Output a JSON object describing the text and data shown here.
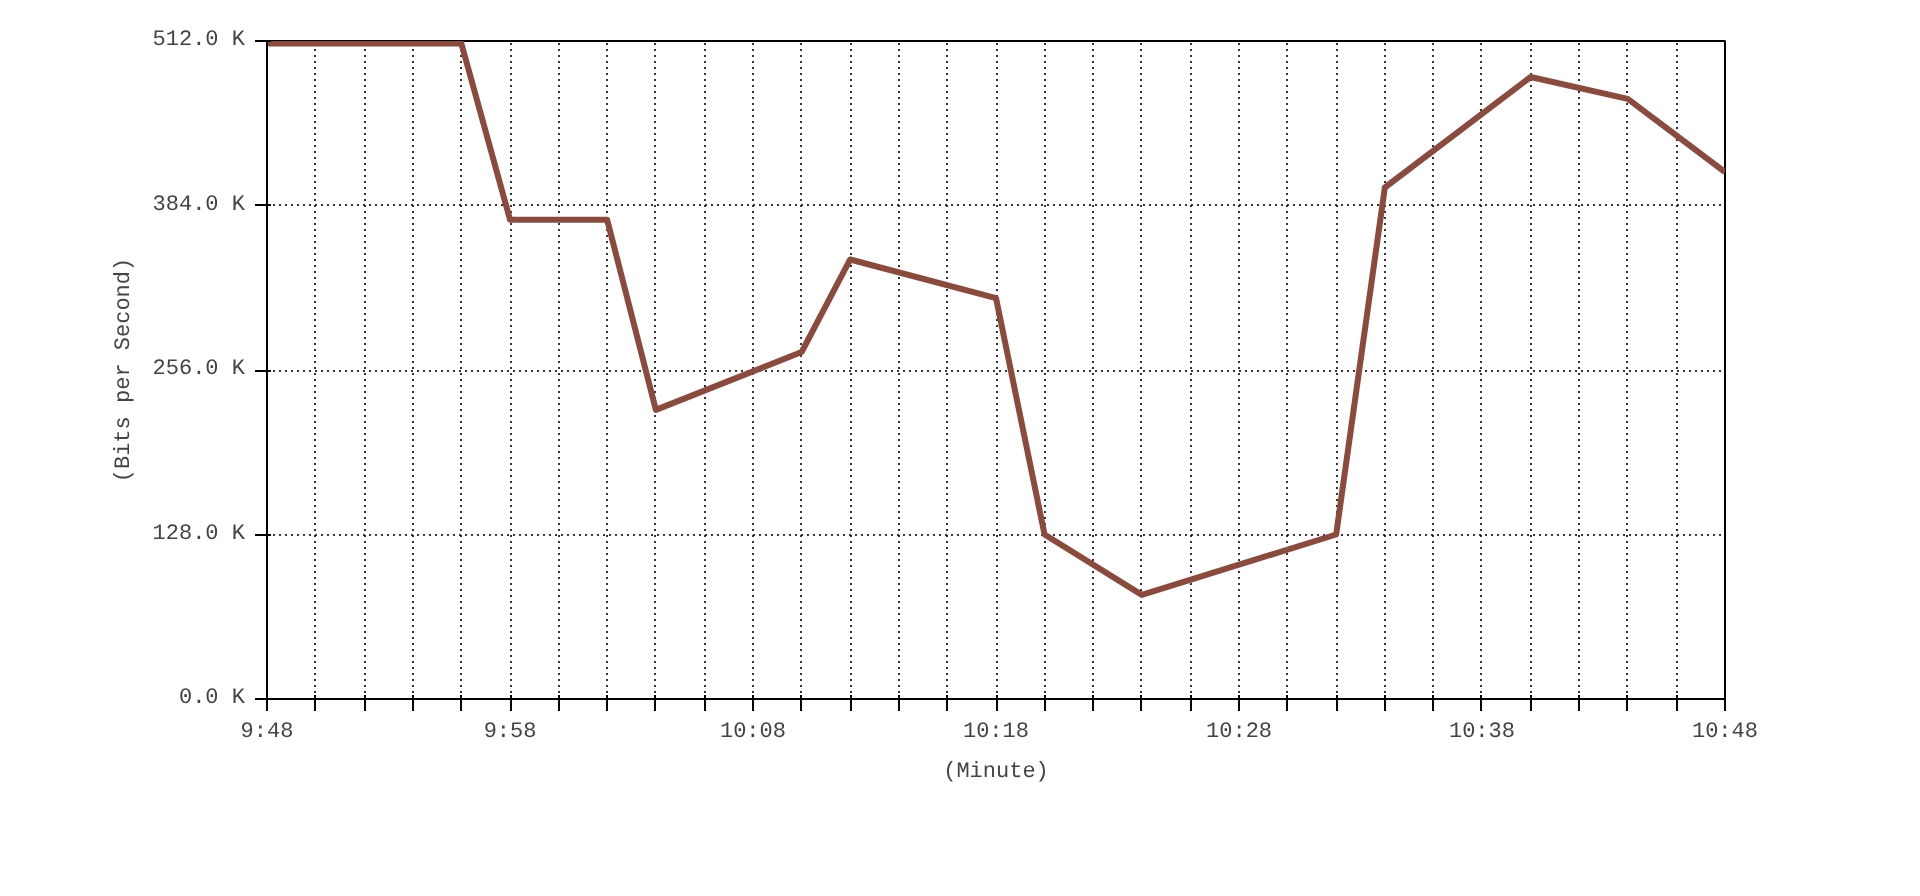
{
  "chart_data": {
    "type": "line",
    "xlabel": "(Minute)",
    "ylabel": "(Bits per Second)",
    "x": [
      9.8,
      9.9333,
      9.9667,
      10.0333,
      10.0667,
      10.1667,
      10.2,
      10.3,
      10.3333,
      10.4,
      10.5333,
      10.5667,
      10.6667,
      10.7333,
      10.8
    ],
    "series": [
      {
        "color": "#8b4a3c",
        "values": [
          510,
          510,
          373,
          373,
          225,
          270,
          342,
          312,
          128,
          81,
          128,
          398,
          484,
          467,
          410
        ]
      }
    ],
    "xlim": [
      9.8,
      10.8
    ],
    "xticks": [
      {
        "value": 9.8,
        "label": "9:48"
      },
      {
        "value": 9.8333,
        "label": null
      },
      {
        "value": 9.8667,
        "label": null
      },
      {
        "value": 9.9,
        "label": null
      },
      {
        "value": 9.9333,
        "label": null
      },
      {
        "value": 9.9667,
        "label": "9:58"
      },
      {
        "value": 10.0,
        "label": null
      },
      {
        "value": 10.0333,
        "label": null
      },
      {
        "value": 10.0667,
        "label": null
      },
      {
        "value": 10.1,
        "label": null
      },
      {
        "value": 10.1333,
        "label": "10:08"
      },
      {
        "value": 10.1667,
        "label": null
      },
      {
        "value": 10.2,
        "label": null
      },
      {
        "value": 10.2333,
        "label": null
      },
      {
        "value": 10.2667,
        "label": null
      },
      {
        "value": 10.3,
        "label": "10:18"
      },
      {
        "value": 10.3333,
        "label": null
      },
      {
        "value": 10.3667,
        "label": null
      },
      {
        "value": 10.4,
        "label": null
      },
      {
        "value": 10.4333,
        "label": null
      },
      {
        "value": 10.4667,
        "label": "10:28"
      },
      {
        "value": 10.5,
        "label": null
      },
      {
        "value": 10.5333,
        "label": null
      },
      {
        "value": 10.5667,
        "label": null
      },
      {
        "value": 10.6,
        "label": null
      },
      {
        "value": 10.6333,
        "label": "10:38"
      },
      {
        "value": 10.6667,
        "label": null
      },
      {
        "value": 10.7,
        "label": null
      },
      {
        "value": 10.7333,
        "label": null
      },
      {
        "value": 10.7667,
        "label": null
      },
      {
        "value": 10.8,
        "label": "10:48"
      }
    ],
    "ylim": [
      0,
      512
    ],
    "yticks": [
      {
        "value": 0,
        "label": "0.0 K"
      },
      {
        "value": 128,
        "label": "128.0 K"
      },
      {
        "value": 256,
        "label": "256.0 K"
      },
      {
        "value": 384,
        "label": "384.0 K"
      },
      {
        "value": 512,
        "label": "512.0 K"
      }
    ],
    "grid": true,
    "line_style": "solid",
    "marker": "none"
  }
}
